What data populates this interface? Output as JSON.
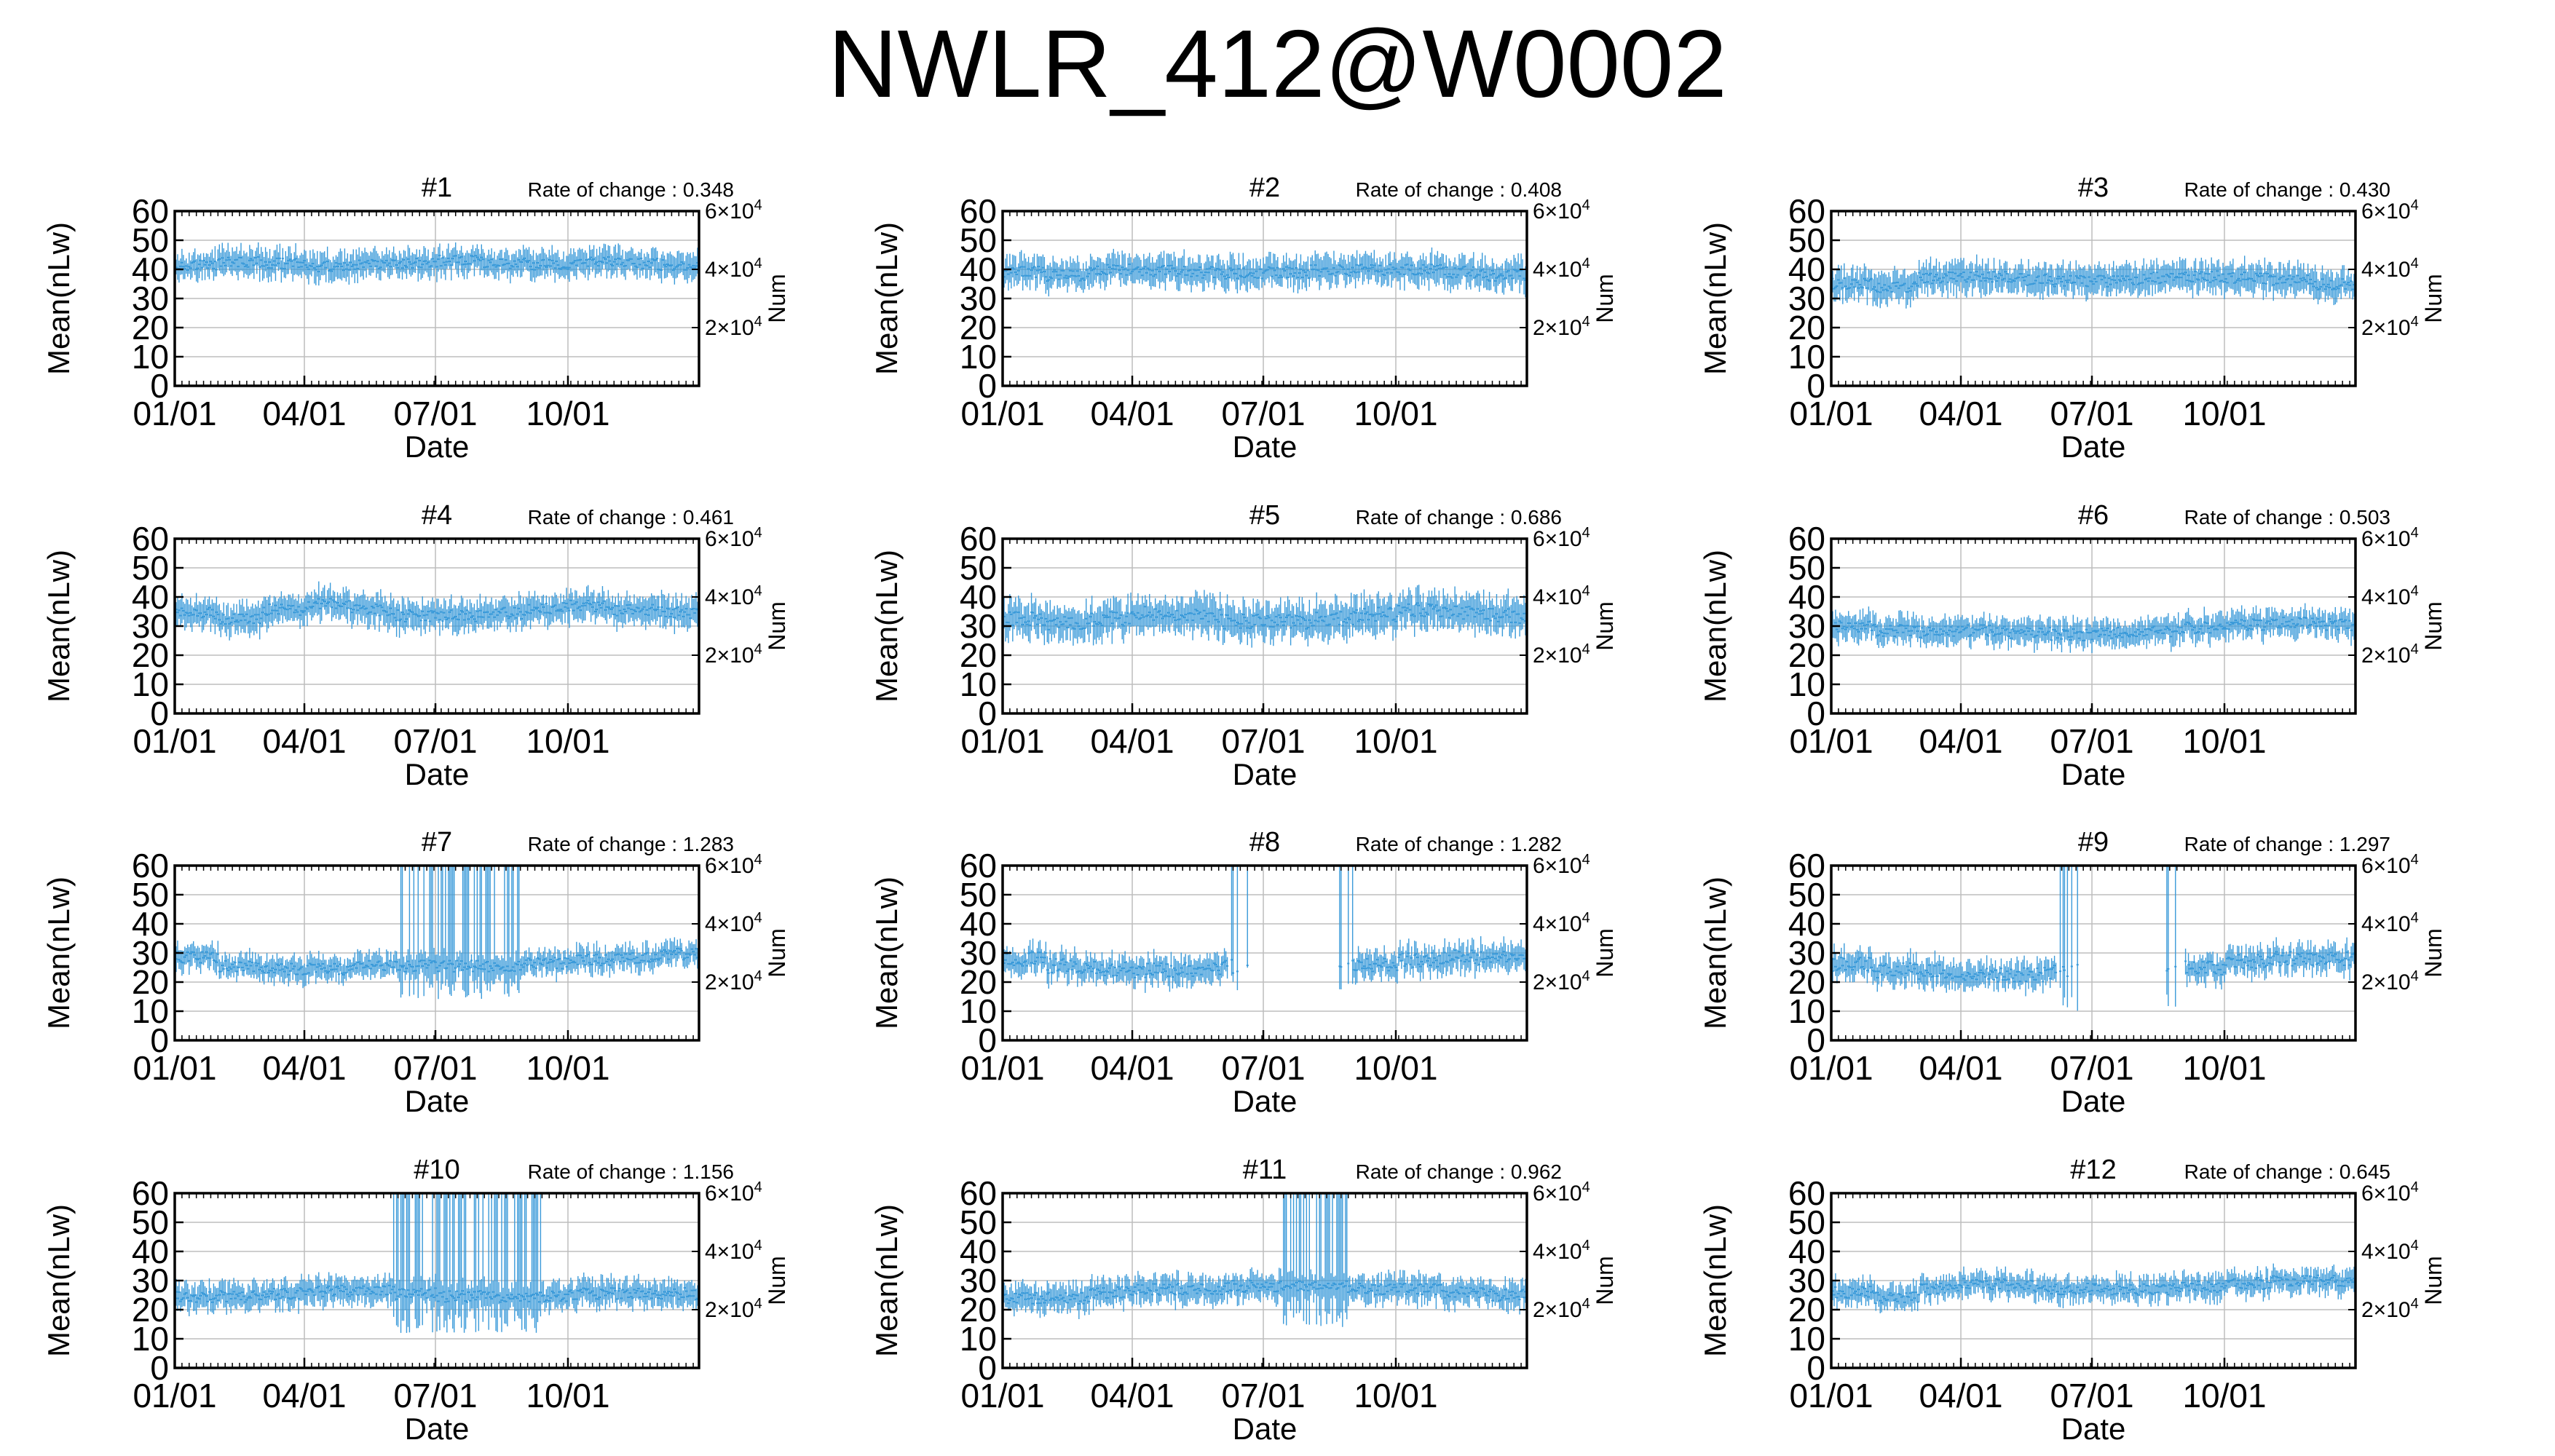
{
  "page": {
    "title": "NWLR_412@W0002"
  },
  "colors": {
    "series": "#3a9ad9",
    "grid": "#bdbdbd",
    "axis": "#000000"
  },
  "axes": {
    "ylabel": "Mean(nLw)",
    "xlabel": "Date",
    "y2label": "Num",
    "yticks": [
      "0",
      "10",
      "20",
      "30",
      "40",
      "50",
      "60"
    ],
    "xticks": [
      {
        "day": 1,
        "label": "01/01"
      },
      {
        "day": 91,
        "label": "04/01"
      },
      {
        "day": 182,
        "label": "07/01"
      },
      {
        "day": 274,
        "label": "10/01"
      }
    ],
    "y2ticks": [
      {
        "y": 20,
        "base": "2×10",
        "exp": "4"
      },
      {
        "y": 40,
        "base": "4×10",
        "exp": "4"
      },
      {
        "y": 60,
        "base": "6×10",
        "exp": "4"
      }
    ]
  },
  "chart_data": [
    {
      "type": "errorbar",
      "title": "#1",
      "rate": "Rate of change : 0.348",
      "ylim": [
        0,
        60
      ],
      "xlim": [
        1,
        365
      ],
      "base": 41.5,
      "spread": 4.5,
      "noise": 1.8,
      "season": [
        0,
        1,
        0.5,
        -0.5,
        0,
        0.5,
        1.5,
        0.5,
        0,
        1,
        0.5,
        0
      ]
    },
    {
      "type": "errorbar",
      "title": "#2",
      "rate": "Rate of change : 0.408",
      "ylim": [
        0,
        60
      ],
      "xlim": [
        1,
        365
      ],
      "base": 39,
      "spread": 5,
      "noise": 2,
      "season": [
        0,
        -1,
        1,
        0.5,
        0,
        -0.5,
        0,
        0.5,
        1,
        1,
        0,
        -1
      ]
    },
    {
      "type": "errorbar",
      "title": "#3",
      "rate": "Rate of change : 0.430",
      "ylim": [
        0,
        60
      ],
      "xlim": [
        1,
        365
      ],
      "base": 36,
      "spread": 5,
      "noise": 2,
      "season": [
        -1,
        -2,
        1,
        1.5,
        0.5,
        0,
        0,
        1,
        1.5,
        1,
        0,
        -1
      ]
    },
    {
      "type": "errorbar",
      "title": "#4",
      "rate": "Rate of change : 0.461",
      "ylim": [
        0,
        60
      ],
      "xlim": [
        1,
        365
      ],
      "base": 34.5,
      "spread": 5,
      "noise": 2,
      "season": [
        0,
        -2,
        1,
        3,
        1,
        -1,
        -1,
        0,
        1.5,
        2.5,
        1,
        0
      ]
    },
    {
      "type": "errorbar",
      "title": "#5",
      "rate": "Rate of change : 0.686",
      "ylim": [
        0,
        60
      ],
      "xlim": [
        1,
        365
      ],
      "base": 32.5,
      "spread": 6,
      "noise": 2.5,
      "season": [
        0,
        -1.5,
        0,
        2,
        1,
        -1,
        -1,
        0,
        1.5,
        3,
        2,
        1
      ]
    },
    {
      "type": "errorbar",
      "title": "#6",
      "rate": "Rate of change : 0.503",
      "ylim": [
        0,
        60
      ],
      "xlim": [
        1,
        365
      ],
      "base": 28.5,
      "spread": 4.5,
      "noise": 2,
      "season": [
        1.5,
        0,
        -0.5,
        0,
        -1,
        -1.5,
        -1,
        -0.5,
        1,
        2,
        2.5,
        2
      ]
    },
    {
      "type": "errorbar",
      "title": "#7",
      "rate": "Rate of change : 1.283",
      "ylim": [
        0,
        60
      ],
      "xlim": [
        1,
        365
      ],
      "base": 25.5,
      "spread": 4,
      "noise": 2,
      "season": [
        3,
        0,
        -1,
        -1,
        0,
        0,
        0,
        0,
        1,
        2,
        3,
        4
      ],
      "spike": [
        155,
        250
      ],
      "spikeKeep": 0.55,
      "spikeMin": 14,
      "spikeMax": 60
    },
    {
      "type": "errorbar",
      "title": "#8",
      "rate": "Rate of change : 1.282",
      "ylim": [
        0,
        60
      ],
      "xlim": [
        1,
        365
      ],
      "base": 25.5,
      "spread": 4.5,
      "noise": 2.5,
      "season": [
        2.5,
        0,
        -1,
        -1.5,
        -1,
        0,
        0,
        0,
        0.5,
        2,
        3,
        3.5
      ],
      "gap": [
        158,
        244
      ],
      "gapEdges": [
        [
          158,
          172
        ],
        [
          232,
          244
        ]
      ],
      "spikeMin": 17,
      "spikeMax": 60
    },
    {
      "type": "errorbar",
      "title": "#9",
      "rate": "Rate of change : 1.297",
      "ylim": [
        0,
        60
      ],
      "xlim": [
        1,
        365
      ],
      "base": 24,
      "spread": 4.5,
      "noise": 2.5,
      "season": [
        2,
        0,
        -0.5,
        -1.5,
        -1.5,
        0,
        0,
        0,
        1,
        3,
        4,
        4
      ],
      "gap": [
        158,
        246
      ],
      "gapEdges": [
        [
          155,
          172
        ],
        [
          234,
          248
        ]
      ],
      "spikeMin": 10,
      "spikeMax": 60
    },
    {
      "type": "errorbar",
      "title": "#10",
      "rate": "Rate of change : 1.156",
      "ylim": [
        0,
        60
      ],
      "xlim": [
        1,
        365
      ],
      "base": 24.5,
      "spread": 4.5,
      "noise": 2,
      "season": [
        0,
        0,
        1,
        2,
        2,
        1,
        0,
        0,
        0,
        1,
        1,
        1
      ],
      "spike": [
        152,
        258
      ],
      "spikeKeep": 0.45,
      "spikeMin": 12,
      "spikeMax": 60
    },
    {
      "type": "errorbar",
      "title": "#11",
      "rate": "Rate of change : 0.962",
      "ylim": [
        0,
        60
      ],
      "xlim": [
        1,
        365
      ],
      "base": 26,
      "spread": 4.5,
      "noise": 2,
      "season": [
        -2,
        -2,
        0,
        1,
        1,
        2,
        2,
        2,
        1,
        1,
        0,
        -1
      ],
      "spike": [
        196,
        240
      ],
      "spikeKeep": 0.6,
      "spikeMin": 14,
      "spikeMax": 60
    },
    {
      "type": "errorbar",
      "title": "#12",
      "rate": "Rate of change : 0.645",
      "ylim": [
        0,
        60
      ],
      "xlim": [
        1,
        365
      ],
      "base": 27,
      "spread": 4,
      "noise": 2,
      "season": [
        -1,
        -3,
        0,
        2,
        1,
        0,
        0,
        0,
        1,
        2,
        3,
        3
      ]
    }
  ]
}
